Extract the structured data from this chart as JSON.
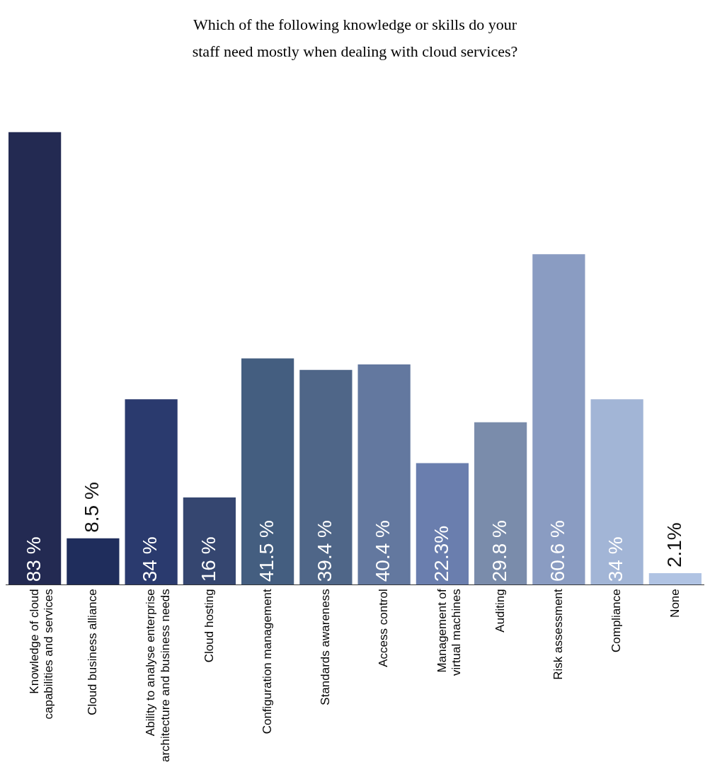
{
  "chart_data": {
    "type": "bar",
    "title": "Which of the following knowledge or skills do your staff need mostly when dealing with cloud services?",
    "categories": [
      "Knowledge of cloud capabilities and services",
      "Cloud business alliance",
      "Ability to analyse enterprise architecture and business needs",
      "Cloud hosting",
      "Configuration management",
      "Standards awareness",
      "Access control",
      "Management of virtual machines",
      "Auditing",
      "Risk assessment",
      "Compliance",
      "None"
    ],
    "values": [
      83,
      8.5,
      34,
      16,
      41.5,
      39.4,
      40.4,
      22.3,
      29.8,
      60.6,
      34,
      2.1
    ],
    "value_labels": [
      "83 %",
      "8.5 %",
      "34 %",
      "16 %",
      "41.5 %",
      "39.4 %",
      "40.4 %",
      "22.3%",
      "29.8 %",
      "60.6 %",
      "34 %",
      "2.1%"
    ],
    "colors": [
      "#232a52",
      "#1f2d5c",
      "#2a3a6e",
      "#354670",
      "#445e80",
      "#4f6688",
      "#63789f",
      "#6a7eae",
      "#7a8cab",
      "#8a9cc2",
      "#a2b5d6",
      "#b0c3e3"
    ],
    "grid": false,
    "legend": false
  }
}
